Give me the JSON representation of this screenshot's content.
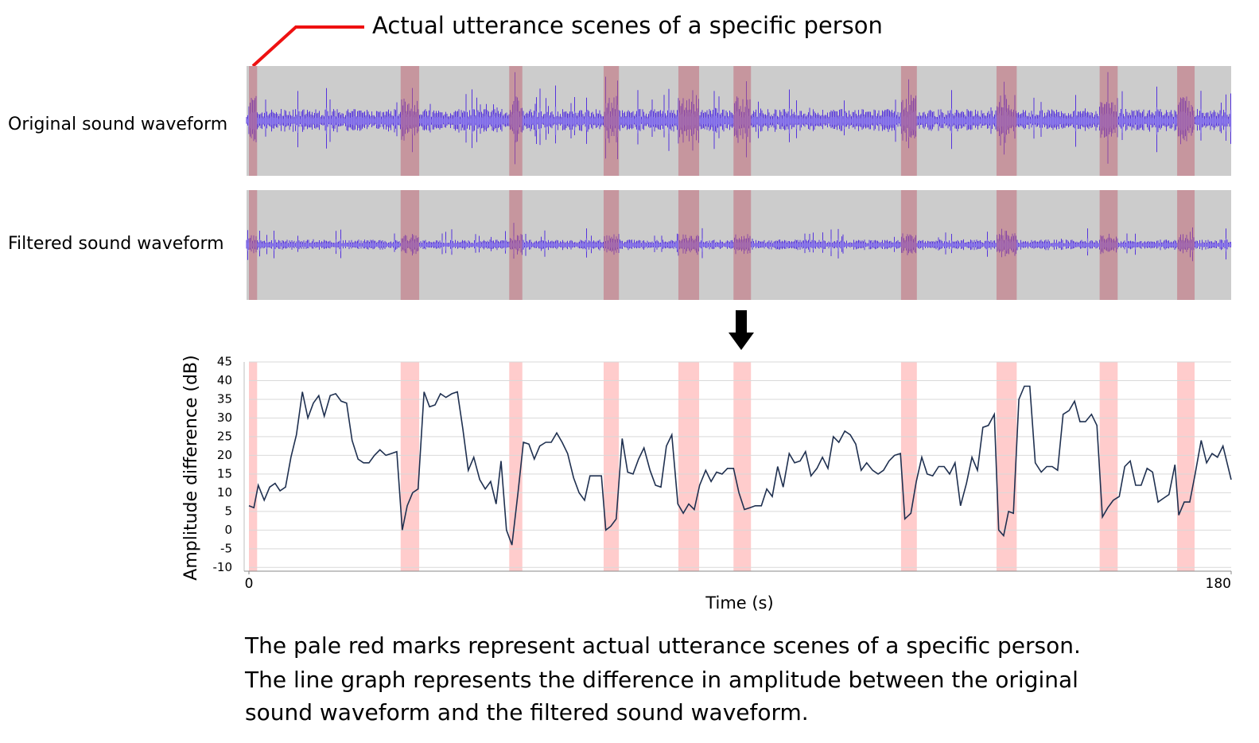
{
  "chart_data": {
    "type": "line",
    "annotation": "Actual utterance scenes of a specific person",
    "panel_labels": [
      "Original sound waveform",
      "Filtered sound waveform"
    ],
    "ylabel": "Amplitude difference (dB)",
    "xlabel": "Time (s)",
    "caption": [
      "The pale red marks represent actual utterance scenes of a specific person.",
      "The line graph represents the difference in amplitude between the original",
      "sound waveform and the filtered sound waveform."
    ],
    "xlim": [
      0,
      180
    ],
    "xticks": [
      0,
      180
    ],
    "ylim": [
      -11,
      45
    ],
    "yticks": [
      -10,
      -5,
      0,
      5,
      10,
      15,
      20,
      25,
      30,
      35,
      40,
      45
    ],
    "grid": true,
    "highlight_color": "#ffcccc",
    "highlights": [
      [
        0,
        1.5
      ],
      [
        27.8,
        31.2
      ],
      [
        47.7,
        50.1
      ],
      [
        65.0,
        67.8
      ],
      [
        78.7,
        82.5
      ],
      [
        88.8,
        92.0
      ],
      [
        119.5,
        122.4
      ],
      [
        137.0,
        140.7
      ],
      [
        155.9,
        159.2
      ],
      [
        170.1,
        173.3
      ]
    ],
    "series": [
      {
        "color": "#1f3050",
        "x": [
          0,
          0.9,
          1.7,
          2.8,
          3.8,
          4.8,
          5.7,
          6.7,
          7.7,
          8.7,
          9.8,
          10.8,
          11.8,
          12.8,
          13.8,
          14.9,
          15.9,
          16.9,
          17.9,
          18.9,
          20.0,
          21.0,
          22.0,
          23.0,
          24.0,
          25.1,
          26.1,
          27.1,
          28.1,
          29.0,
          30.0,
          31.0,
          32.1,
          33.1,
          34.1,
          35.1,
          36.1,
          37.2,
          38.2,
          39.2,
          40.2,
          41.2,
          42.3,
          43.3,
          44.3,
          45.3,
          46.2,
          47.2,
          48.2,
          49.3,
          50.3,
          51.3,
          52.3,
          53.3,
          54.4,
          55.4,
          56.4,
          57.4,
          58.4,
          59.5,
          60.5,
          61.5,
          62.5,
          63.5,
          64.6,
          65.4,
          66.3,
          67.3,
          68.4,
          69.4,
          70.4,
          71.4,
          72.4,
          73.5,
          74.5,
          75.5,
          76.5,
          77.5,
          78.6,
          79.6,
          80.6,
          81.6,
          82.6,
          83.7,
          84.7,
          85.7,
          86.7,
          87.7,
          88.8,
          89.8,
          90.8,
          91.8,
          92.8,
          93.9,
          94.9,
          95.9,
          96.9,
          97.9,
          99.0,
          100.0,
          101.0,
          102.0,
          103.0,
          104.1,
          105.1,
          106.1,
          107.1,
          108.1,
          109.2,
          110.2,
          111.2,
          112.2,
          113.2,
          114.3,
          115.3,
          116.3,
          117.3,
          118.3,
          119.4,
          120.2,
          121.3,
          122.3,
          123.3,
          124.3,
          125.3,
          126.4,
          127.4,
          128.4,
          129.4,
          130.4,
          131.5,
          132.5,
          133.5,
          134.5,
          135.5,
          136.6,
          137.4,
          138.3,
          139.2,
          140.1,
          141.1,
          142.1,
          143.1,
          144.1,
          145.2,
          146.2,
          147.2,
          148.2,
          149.2,
          150.3,
          151.3,
          152.3,
          153.3,
          154.4,
          155.4,
          156.4,
          157.4,
          158.4,
          159.5,
          160.5,
          161.5,
          162.5,
          163.5,
          164.6,
          165.6,
          166.6,
          167.6,
          168.6,
          169.7,
          170.4,
          171.4,
          172.4,
          173.4,
          174.5,
          175.5,
          176.5,
          177.5,
          178.5,
          180.0
        ],
        "values": [
          6.5,
          6,
          12,
          8,
          11.5,
          12.5,
          10.5,
          11.5,
          19.5,
          25.5,
          37,
          30,
          34,
          36,
          30.5,
          36,
          36.5,
          34.5,
          34,
          24,
          19,
          18,
          18,
          20,
          21.5,
          20,
          20.5,
          21,
          0,
          6.5,
          10,
          11,
          37,
          33,
          33.5,
          36.5,
          35.5,
          36.5,
          37,
          27,
          16,
          19.5,
          13.5,
          11,
          13,
          7,
          18.5,
          0,
          -4,
          10,
          23.5,
          23,
          19,
          22.5,
          23.5,
          23.5,
          26,
          23.5,
          20.5,
          14,
          10,
          8,
          14.5,
          14.5,
          14.5,
          0,
          1,
          3,
          24.5,
          15.5,
          15,
          19,
          22,
          16,
          12,
          11.5,
          22.5,
          25.5,
          7,
          4.5,
          7,
          5.5,
          12,
          16,
          13,
          15.5,
          15,
          16.5,
          16.5,
          10,
          5.5,
          6,
          6.5,
          6.5,
          11,
          9,
          17,
          11.5,
          20.5,
          18,
          18.5,
          21,
          14.5,
          16.5,
          19.5,
          16.5,
          25,
          23.5,
          26.5,
          25.5,
          23,
          16,
          18,
          16,
          15,
          16,
          18.5,
          20,
          20.5,
          3,
          4.5,
          13,
          19.5,
          15,
          14.5,
          17,
          17,
          15,
          18,
          6.5,
          12.5,
          19.5,
          16,
          27.5,
          28,
          31,
          0,
          -1.5,
          5,
          4.5,
          35,
          38.5,
          38.5,
          18,
          15.5,
          17,
          17,
          16,
          31,
          32,
          34.5,
          29,
          29,
          31,
          28,
          3.5,
          6,
          8,
          9,
          17,
          18.5,
          12,
          12,
          16.5,
          15.5,
          7.5,
          8.5,
          9.5,
          17.5,
          4,
          7.5,
          7.5,
          15,
          24,
          18,
          20.5,
          19.5,
          22.5,
          13.5
        ]
      }
    ]
  }
}
